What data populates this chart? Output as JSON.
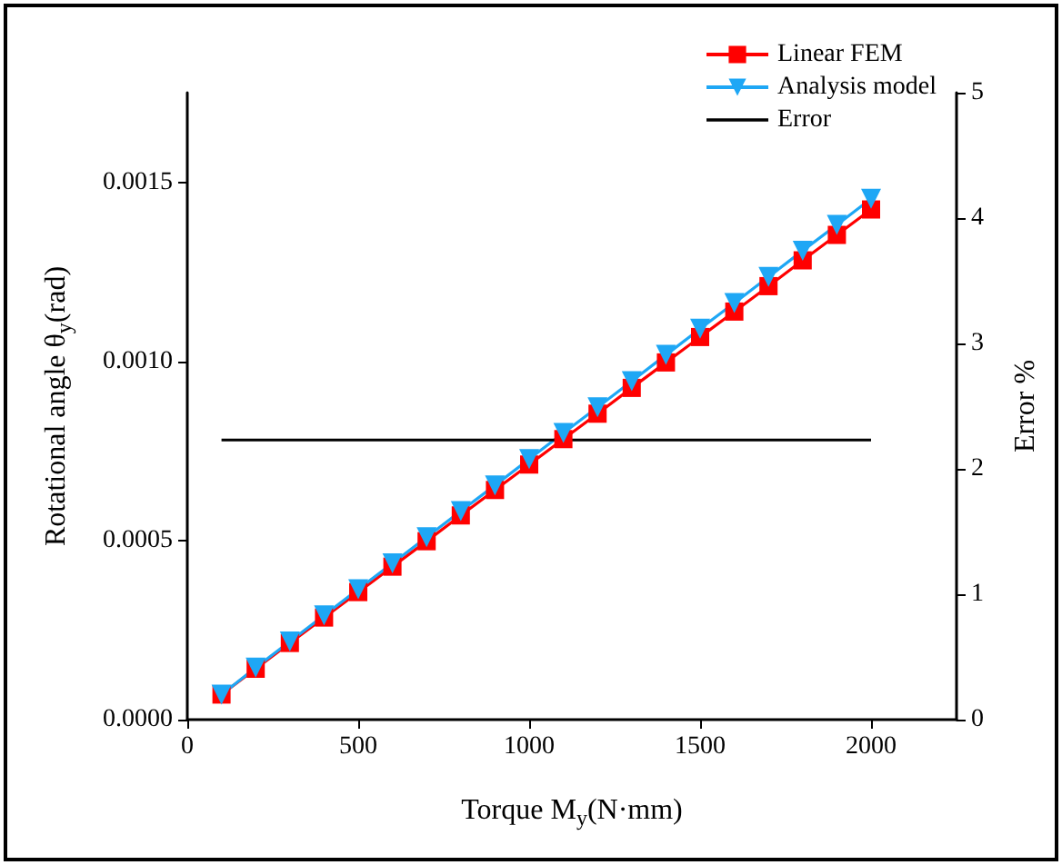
{
  "chart_data": {
    "type": "line",
    "xlabel": "Torque M$_{y}$(N·mm)",
    "ylabel": "Rotational angle θ$_{y}$(rad)",
    "y2label": "Error %",
    "x": [
      100,
      200,
      300,
      400,
      500,
      600,
      700,
      800,
      900,
      1000,
      1100,
      1200,
      1300,
      1400,
      1500,
      1600,
      1700,
      1800,
      1900,
      2000
    ],
    "xlim": [
      0,
      2250
    ],
    "xticks": [
      0,
      500,
      1000,
      1500,
      2000
    ],
    "ylim": [
      0,
      0.00175
    ],
    "yticks": [
      {
        "value": 0,
        "label": "0.0000"
      },
      {
        "value": 0.0005,
        "label": "0.0005"
      },
      {
        "value": 0.001,
        "label": "0.0010"
      },
      {
        "value": 0.0015,
        "label": "0.0015"
      }
    ],
    "y2lim": [
      0,
      5
    ],
    "y2ticks": [
      0,
      1,
      2,
      3,
      4,
      5
    ],
    "series": [
      {
        "name": "Linear FEM",
        "color": "#ff0000",
        "marker": "square",
        "values": [
          7e-05,
          0.000142,
          0.000214,
          0.000285,
          0.000356,
          0.000427,
          0.000498,
          0.00057,
          0.000641,
          0.000712,
          0.000783,
          0.000854,
          0.000926,
          0.000997,
          0.001068,
          0.001139,
          0.00121,
          0.001282,
          0.001353,
          0.001424
        ]
      },
      {
        "name": "Analysis model",
        "color": "#1ea7f5",
        "marker": "triangle",
        "values": [
          7e-05,
          0.000145,
          0.000218,
          0.000291,
          0.000364,
          0.000436,
          0.000509,
          0.000582,
          0.000654,
          0.000727,
          0.0008,
          0.000872,
          0.000945,
          0.001018,
          0.001091,
          0.001163,
          0.001236,
          0.001309,
          0.001381,
          0.001454
        ]
      },
      {
        "name": "Error",
        "color": "#000000",
        "marker": "none",
        "axis": "y2",
        "values": [
          2.23,
          2.23,
          2.23,
          2.23,
          2.23,
          2.23,
          2.23,
          2.23,
          2.23,
          2.23,
          2.23,
          2.23,
          2.23,
          2.23,
          2.23,
          2.23,
          2.23,
          2.23,
          2.23,
          2.23
        ]
      }
    ],
    "legend": "top right",
    "grid": false
  }
}
